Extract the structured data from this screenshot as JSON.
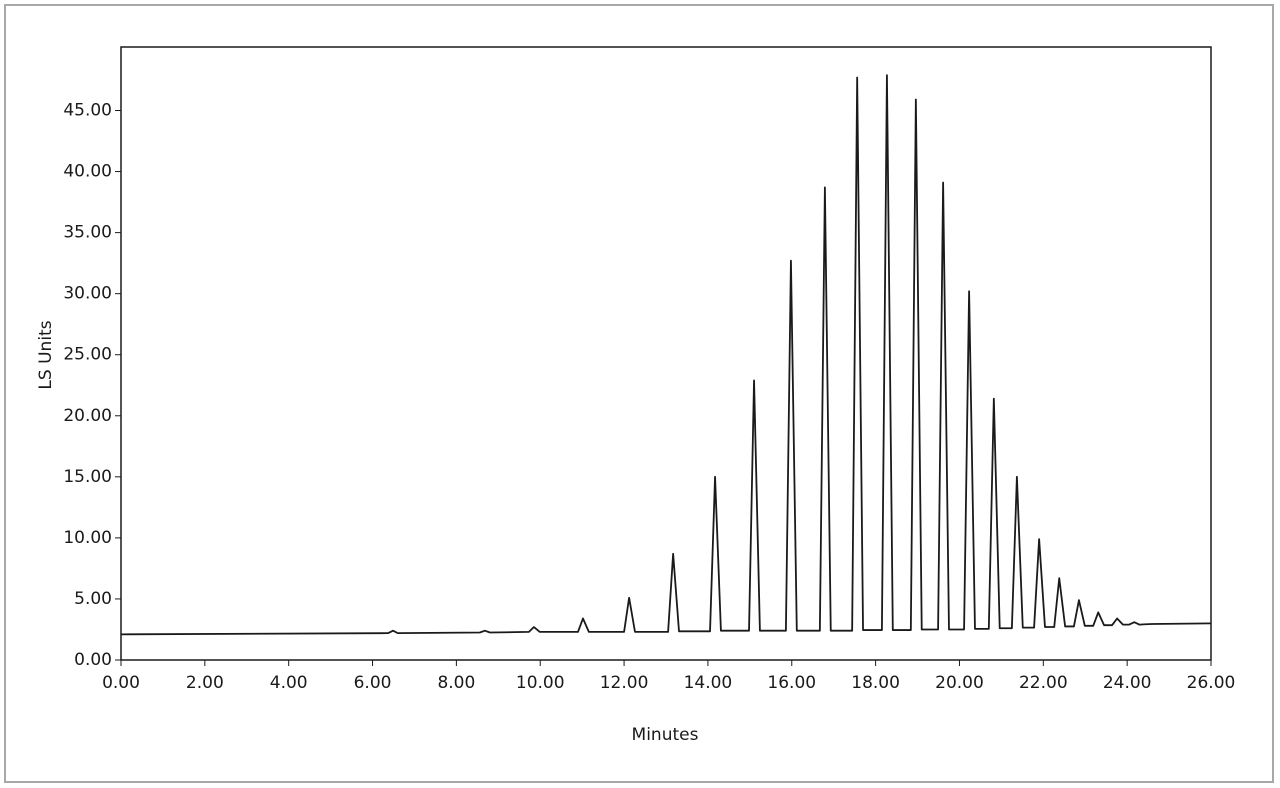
{
  "chart_data": {
    "type": "line",
    "x_label": "Minutes",
    "y_label": "LS Units",
    "x": [
      0,
      6.37,
      6.49,
      6.6,
      8.56,
      8.68,
      8.8,
      9.73,
      9.85,
      9.99,
      10.9,
      11.02,
      11.16,
      12.0,
      12.12,
      12.26,
      13.05,
      13.17,
      13.31,
      14.05,
      14.17,
      14.31,
      14.98,
      15.1,
      15.24,
      15.86,
      15.98,
      16.12,
      16.67,
      16.79,
      16.93,
      17.44,
      17.56,
      17.7,
      18.15,
      18.27,
      18.41,
      18.84,
      18.96,
      19.1,
      19.49,
      19.61,
      19.75,
      20.11,
      20.23,
      20.37,
      20.7,
      20.82,
      20.96,
      21.25,
      21.37,
      21.51,
      21.78,
      21.9,
      22.04,
      22.26,
      22.38,
      22.52,
      22.73,
      22.85,
      22.99,
      23.19,
      23.31,
      23.45,
      23.64,
      23.76,
      23.9,
      24.05,
      24.17,
      24.29,
      24.59,
      26
    ],
    "series": [
      {
        "color": "#1a1a1a",
        "values": [
          2.1,
          2.2,
          2.4,
          2.2,
          2.25,
          2.4,
          2.25,
          2.3,
          2.7,
          2.3,
          2.3,
          3.4,
          2.3,
          2.3,
          5.1,
          2.3,
          2.3,
          8.7,
          2.35,
          2.35,
          15.0,
          2.4,
          2.4,
          22.9,
          2.4,
          2.4,
          32.7,
          2.4,
          2.4,
          38.7,
          2.4,
          2.4,
          47.7,
          2.45,
          2.45,
          47.9,
          2.45,
          2.45,
          45.9,
          2.5,
          2.5,
          39.1,
          2.5,
          2.5,
          30.2,
          2.55,
          2.55,
          21.4,
          2.6,
          2.6,
          15.0,
          2.65,
          2.65,
          9.9,
          2.7,
          2.7,
          6.7,
          2.75,
          2.75,
          4.9,
          2.8,
          2.8,
          3.9,
          2.85,
          2.85,
          3.4,
          2.9,
          2.9,
          3.1,
          2.9,
          2.95,
          3.0
        ]
      }
    ],
    "xlim": [
      0,
      26
    ],
    "ylim": [
      0,
      50.2
    ],
    "xticks": [
      {
        "value": 0,
        "label": "0.00"
      },
      {
        "value": 2,
        "label": "2.00"
      },
      {
        "value": 4,
        "label": "4.00"
      },
      {
        "value": 6,
        "label": "6.00"
      },
      {
        "value": 8,
        "label": "8.00"
      },
      {
        "value": 10,
        "label": "10.00"
      },
      {
        "value": 12,
        "label": "12.00"
      },
      {
        "value": 14,
        "label": "14.00"
      },
      {
        "value": 16,
        "label": "16.00"
      },
      {
        "value": 18,
        "label": "18.00"
      },
      {
        "value": 20,
        "label": "20.00"
      },
      {
        "value": 22,
        "label": "22.00"
      },
      {
        "value": 24,
        "label": "24.00"
      },
      {
        "value": 26,
        "label": "26.00"
      }
    ],
    "yticks": [
      {
        "value": 0,
        "label": "0.00"
      },
      {
        "value": 5,
        "label": "5.00"
      },
      {
        "value": 10,
        "label": "10.00"
      },
      {
        "value": 15,
        "label": "15.00"
      },
      {
        "value": 20,
        "label": "20.00"
      },
      {
        "value": 25,
        "label": "25.00"
      },
      {
        "value": 30,
        "label": "30.00"
      },
      {
        "value": 35,
        "label": "35.00"
      },
      {
        "value": 40,
        "label": "40.00"
      },
      {
        "value": 45,
        "label": "45.00"
      }
    ],
    "grid": false
  }
}
